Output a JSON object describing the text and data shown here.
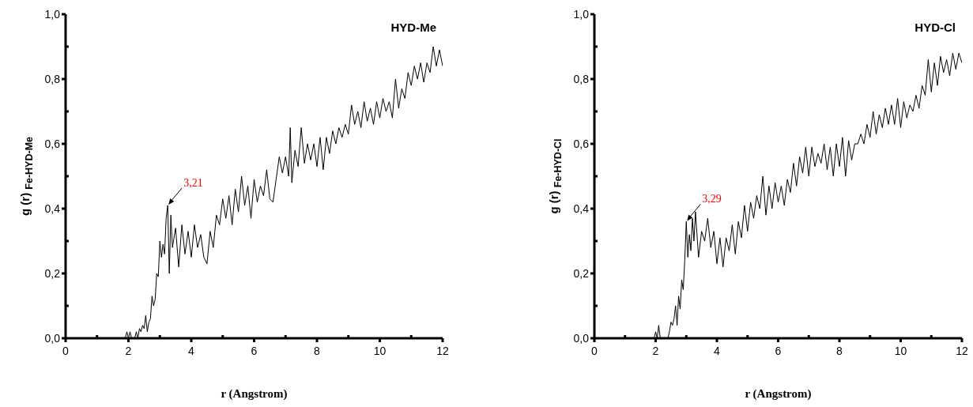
{
  "chart_data": [
    {
      "type": "line",
      "title": "HYD-Me",
      "xlabel": "r (Angstrom)",
      "ylabel": "g (r) $_{Fe-HYD-Me}$",
      "xlim": [
        0,
        12
      ],
      "ylim": [
        0,
        1
      ],
      "xticks": [
        0,
        2,
        4,
        6,
        8,
        10,
        12
      ],
      "yticks": [
        {
          "value": 0,
          "label": "0,0"
        },
        {
          "value": 0.2,
          "label": "0,2"
        },
        {
          "value": 0.4,
          "label": "0,4"
        },
        {
          "value": 0.6,
          "label": "0,6"
        },
        {
          "value": 0.8,
          "label": "0,8"
        },
        {
          "value": 1,
          "label": "1,0"
        }
      ],
      "grid": false,
      "legend": false,
      "marker": "none",
      "line_style": "solid",
      "annotations": [
        {
          "text": "3,21",
          "x": 3.25,
          "y": 0.41
        }
      ],
      "series": [
        {
          "color": "#000000",
          "x": [
            0,
            1.9,
            1.95,
            2.0,
            2.05,
            2.1,
            2.2,
            2.25,
            2.3,
            2.35,
            2.4,
            2.45,
            2.5,
            2.55,
            2.6,
            2.65,
            2.7,
            2.75,
            2.8,
            2.85,
            2.9,
            2.95,
            3.0,
            3.05,
            3.1,
            3.15,
            3.2,
            3.25,
            3.3,
            3.35,
            3.4,
            3.5,
            3.6,
            3.7,
            3.8,
            3.9,
            4.0,
            4.1,
            4.2,
            4.3,
            4.4,
            4.5,
            4.6,
            4.7,
            4.8,
            4.9,
            5.0,
            5.1,
            5.2,
            5.3,
            5.4,
            5.5,
            5.6,
            5.7,
            5.8,
            5.9,
            6.0,
            6.1,
            6.2,
            6.3,
            6.4,
            6.5,
            6.6,
            6.7,
            6.8,
            6.9,
            7.0,
            7.1,
            7.15,
            7.2,
            7.3,
            7.4,
            7.5,
            7.6,
            7.7,
            7.8,
            7.9,
            8.0,
            8.1,
            8.2,
            8.3,
            8.4,
            8.5,
            8.6,
            8.7,
            8.8,
            8.9,
            9.0,
            9.1,
            9.2,
            9.3,
            9.4,
            9.5,
            9.6,
            9.7,
            9.8,
            9.9,
            10.0,
            10.1,
            10.2,
            10.3,
            10.4,
            10.5,
            10.6,
            10.7,
            10.8,
            10.9,
            11.0,
            11.1,
            11.2,
            11.3,
            11.4,
            11.5,
            11.6,
            11.7,
            11.8,
            11.9,
            12.0
          ],
          "values": [
            0,
            0,
            0.02,
            0,
            0.02,
            0,
            0,
            0.02,
            0,
            0.03,
            0.02,
            0.04,
            0.03,
            0.07,
            0.02,
            0.05,
            0.06,
            0.13,
            0.1,
            0.12,
            0.2,
            0.19,
            0.3,
            0.25,
            0.29,
            0.26,
            0.37,
            0.41,
            0.2,
            0.38,
            0.28,
            0.34,
            0.22,
            0.35,
            0.26,
            0.33,
            0.25,
            0.35,
            0.28,
            0.32,
            0.25,
            0.23,
            0.33,
            0.28,
            0.38,
            0.35,
            0.43,
            0.37,
            0.44,
            0.35,
            0.46,
            0.39,
            0.5,
            0.41,
            0.47,
            0.37,
            0.49,
            0.42,
            0.47,
            0.44,
            0.52,
            0.43,
            0.42,
            0.49,
            0.56,
            0.51,
            0.56,
            0.5,
            0.65,
            0.48,
            0.58,
            0.53,
            0.65,
            0.54,
            0.6,
            0.55,
            0.6,
            0.53,
            0.62,
            0.52,
            0.62,
            0.57,
            0.64,
            0.6,
            0.65,
            0.62,
            0.66,
            0.63,
            0.72,
            0.66,
            0.7,
            0.65,
            0.73,
            0.67,
            0.71,
            0.66,
            0.73,
            0.68,
            0.74,
            0.7,
            0.73,
            0.68,
            0.8,
            0.71,
            0.77,
            0.74,
            0.82,
            0.78,
            0.84,
            0.8,
            0.85,
            0.79,
            0.85,
            0.82,
            0.9,
            0.84,
            0.89,
            0.84
          ]
        }
      ]
    },
    {
      "type": "line",
      "title": "HYD-Cl",
      "xlabel": "r (Angstrom)",
      "ylabel": "g (r) $_{Fe-HYD-Cl}$",
      "xlim": [
        0,
        12
      ],
      "ylim": [
        0,
        1
      ],
      "xticks": [
        0,
        2,
        4,
        6,
        8,
        10,
        12
      ],
      "yticks": [
        {
          "value": 0,
          "label": "0,0"
        },
        {
          "value": 0.2,
          "label": "0,2"
        },
        {
          "value": 0.4,
          "label": "0,4"
        },
        {
          "value": 0.6,
          "label": "0,6"
        },
        {
          "value": 0.8,
          "label": "0,8"
        },
        {
          "value": 1,
          "label": "1,0"
        }
      ],
      "grid": false,
      "legend": false,
      "marker": "none",
      "line_style": "solid",
      "annotations": [
        {
          "text": "3,29",
          "x": 3.0,
          "y": 0.36
        }
      ],
      "series": [
        {
          "color": "#000000",
          "x": [
            0,
            1.95,
            2.0,
            2.05,
            2.1,
            2.15,
            2.4,
            2.45,
            2.5,
            2.55,
            2.6,
            2.65,
            2.7,
            2.75,
            2.8,
            2.85,
            2.9,
            2.95,
            3.0,
            3.05,
            3.1,
            3.15,
            3.2,
            3.25,
            3.3,
            3.4,
            3.5,
            3.6,
            3.7,
            3.8,
            3.9,
            4.0,
            4.1,
            4.2,
            4.3,
            4.4,
            4.5,
            4.6,
            4.7,
            4.8,
            4.9,
            5.0,
            5.1,
            5.2,
            5.3,
            5.4,
            5.5,
            5.6,
            5.7,
            5.8,
            5.9,
            6.0,
            6.1,
            6.2,
            6.3,
            6.4,
            6.5,
            6.6,
            6.7,
            6.8,
            6.9,
            7.0,
            7.1,
            7.2,
            7.3,
            7.4,
            7.5,
            7.6,
            7.7,
            7.8,
            7.9,
            8.0,
            8.1,
            8.2,
            8.3,
            8.4,
            8.5,
            8.6,
            8.7,
            8.8,
            8.9,
            9.0,
            9.1,
            9.2,
            9.3,
            9.4,
            9.5,
            9.6,
            9.7,
            9.8,
            9.9,
            10.0,
            10.1,
            10.2,
            10.3,
            10.4,
            10.5,
            10.6,
            10.7,
            10.8,
            10.9,
            11.0,
            11.1,
            11.2,
            11.3,
            11.4,
            11.5,
            11.6,
            11.7,
            11.8,
            11.9,
            12.0
          ],
          "values": [
            0,
            0,
            0.02,
            0,
            0.04,
            0,
            0,
            0.02,
            0.05,
            0.04,
            0.06,
            0.1,
            0.04,
            0.13,
            0.09,
            0.18,
            0.15,
            0.24,
            0.36,
            0.25,
            0.32,
            0.27,
            0.37,
            0.3,
            0.39,
            0.25,
            0.33,
            0.3,
            0.37,
            0.28,
            0.33,
            0.23,
            0.31,
            0.22,
            0.31,
            0.27,
            0.35,
            0.26,
            0.36,
            0.31,
            0.41,
            0.33,
            0.42,
            0.37,
            0.44,
            0.4,
            0.5,
            0.38,
            0.47,
            0.4,
            0.48,
            0.42,
            0.47,
            0.41,
            0.49,
            0.45,
            0.54,
            0.47,
            0.56,
            0.51,
            0.59,
            0.5,
            0.59,
            0.53,
            0.57,
            0.54,
            0.6,
            0.52,
            0.59,
            0.5,
            0.6,
            0.53,
            0.62,
            0.5,
            0.61,
            0.55,
            0.6,
            0.6,
            0.63,
            0.6,
            0.66,
            0.62,
            0.7,
            0.63,
            0.69,
            0.65,
            0.71,
            0.66,
            0.72,
            0.66,
            0.74,
            0.65,
            0.73,
            0.68,
            0.72,
            0.7,
            0.75,
            0.71,
            0.78,
            0.75,
            0.86,
            0.76,
            0.85,
            0.78,
            0.87,
            0.82,
            0.86,
            0.81,
            0.88,
            0.83,
            0.88,
            0.85
          ]
        }
      ]
    }
  ]
}
